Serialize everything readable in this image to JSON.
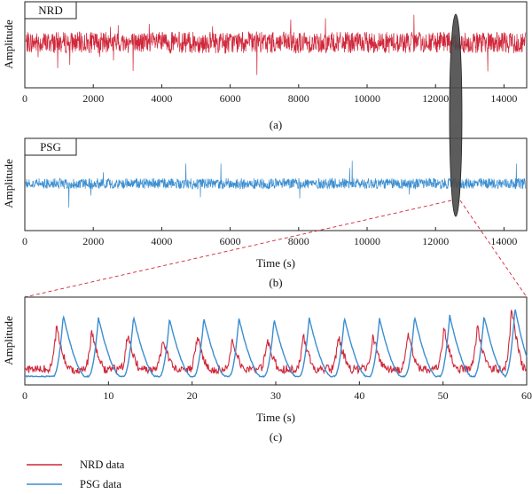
{
  "colors": {
    "nrd": "#d0273a",
    "psg": "#3b8ed0",
    "highlight": "#4a4a4a",
    "connector": "#d0273a"
  },
  "chart_data": [
    {
      "type": "line",
      "panel": "(a)",
      "tag": "NRD",
      "ylabel": "Amplitude",
      "xlabel": "",
      "xlim": [
        0,
        14300
      ],
      "xticks": [
        0,
        2000,
        4000,
        6000,
        8000,
        10000,
        12000,
        14000
      ],
      "tick_labels": [
        "0",
        "2000",
        "4000",
        "6000",
        "8000",
        "10000",
        "12000",
        "14000"
      ],
      "series": [
        {
          "color": "#d0273a",
          "x_range": [
            0,
            14300
          ],
          "baseline": 0,
          "amplitude": 0.12,
          "spike_amplitude": 0.38
        }
      ],
      "highlight_window_x": 12000
    },
    {
      "type": "line",
      "panel": "(b)",
      "tag": "PSG",
      "ylabel": "Amplitude",
      "xlabel": "Time (s)",
      "xlim": [
        0,
        14300
      ],
      "xticks": [
        0,
        2000,
        4000,
        6000,
        8000,
        10000,
        12000,
        14000
      ],
      "tick_labels": [
        "0",
        "2000",
        "4000",
        "6000",
        "8000",
        "10000",
        "12000",
        "14000"
      ],
      "series": [
        {
          "color": "#3b8ed0",
          "x_range": [
            0,
            14300
          ],
          "baseline": 0,
          "amplitude": 0.06,
          "spike_amplitude": 0.3
        }
      ],
      "highlight_window_x": 12000
    },
    {
      "type": "line",
      "panel": "(c)",
      "ylabel": "Amplitude",
      "xlabel": "Time (s)",
      "xlim": [
        0,
        60
      ],
      "xticks": [
        0,
        10,
        20,
        30,
        40,
        50,
        60
      ],
      "tick_labels": [
        "0",
        "10",
        "20",
        "30",
        "40",
        "50",
        "60"
      ],
      "series": [
        {
          "name": "NRD data",
          "color": "#d0273a",
          "peak_times": [
            3.8,
            8.0,
            12.3,
            16.5,
            20.6,
            24.8,
            29.0,
            33.3,
            37.5,
            41.6,
            45.8,
            50.1,
            54.1,
            58.2
          ],
          "peak_values": [
            0.72,
            0.66,
            0.62,
            0.57,
            0.58,
            0.56,
            0.53,
            0.58,
            0.57,
            0.61,
            0.6,
            0.7,
            0.74,
            1.0
          ]
        },
        {
          "name": "PSG data",
          "color": "#3b8ed0",
          "peak_times": [
            4.6,
            8.8,
            13.0,
            17.3,
            21.4,
            25.6,
            29.8,
            34.0,
            38.2,
            42.4,
            46.6,
            50.8,
            54.9,
            58.6
          ],
          "peak_values": [
            0.88,
            0.85,
            0.86,
            0.83,
            0.84,
            0.84,
            0.82,
            0.85,
            0.85,
            0.84,
            0.86,
            0.88,
            0.87,
            0.98
          ]
        }
      ]
    }
  ],
  "legend": [
    {
      "label": "NRD data",
      "color": "#d0273a"
    },
    {
      "label": "PSG data",
      "color": "#3b8ed0"
    }
  ]
}
